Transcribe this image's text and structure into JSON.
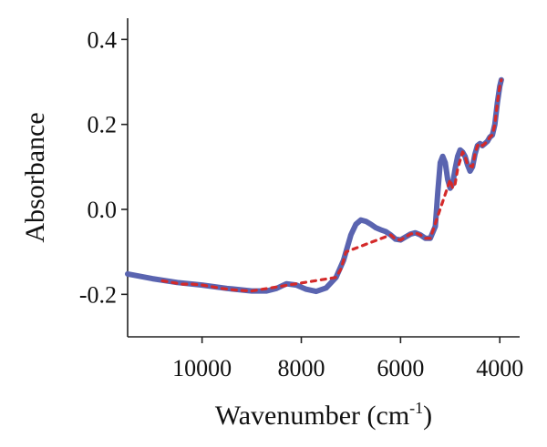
{
  "chart_data": {
    "type": "line",
    "title": "",
    "xlabel": "Wavenumber (cm",
    "xlabel_sup": "-1",
    "xlabel_tail": ")",
    "ylabel": "Absorbance",
    "x_reversed": true,
    "xlim": [
      11500,
      3600
    ],
    "ylim": [
      -0.3,
      0.45
    ],
    "x_ticks": [
      10000,
      8000,
      6000,
      4000
    ],
    "x_tick_labels": [
      "10000",
      "8000",
      "6000",
      "4000"
    ],
    "y_ticks": [
      0.4,
      0.2,
      0.0,
      -0.2
    ],
    "y_tick_labels": [
      "0.4",
      "0.2",
      "0.0",
      "-0.2"
    ],
    "grid": false,
    "colors": {
      "main": "#5a64b0",
      "overlay": "#d42a2a"
    },
    "series": [
      {
        "style": "solid",
        "x": [
          11500,
          11000,
          10500,
          10000,
          9500,
          9000,
          8700,
          8500,
          8300,
          8100,
          7900,
          7700,
          7500,
          7300,
          7150,
          7000,
          6900,
          6800,
          6700,
          6600,
          6500,
          6400,
          6300,
          6200,
          6100,
          6000,
          5900,
          5800,
          5700,
          5600,
          5500,
          5400,
          5300,
          5250,
          5200,
          5150,
          5100,
          5050,
          5000,
          4950,
          4900,
          4850,
          4800,
          4750,
          4700,
          4650,
          4600,
          4550,
          4500,
          4450,
          4400,
          4350,
          4300,
          4250,
          4200,
          4150,
          4100,
          4050,
          4000,
          3970
        ],
        "y": [
          -0.152,
          -0.163,
          -0.172,
          -0.178,
          -0.186,
          -0.192,
          -0.192,
          -0.186,
          -0.175,
          -0.178,
          -0.188,
          -0.193,
          -0.185,
          -0.16,
          -0.12,
          -0.06,
          -0.035,
          -0.025,
          -0.028,
          -0.035,
          -0.043,
          -0.048,
          -0.052,
          -0.06,
          -0.07,
          -0.072,
          -0.065,
          -0.058,
          -0.055,
          -0.06,
          -0.068,
          -0.068,
          -0.04,
          0.04,
          0.11,
          0.125,
          0.11,
          0.07,
          0.05,
          0.06,
          0.095,
          0.125,
          0.14,
          0.135,
          0.125,
          0.105,
          0.09,
          0.1,
          0.13,
          0.15,
          0.155,
          0.15,
          0.155,
          0.16,
          0.17,
          0.175,
          0.2,
          0.25,
          0.29,
          0.305
        ]
      },
      {
        "style": "dashed",
        "x": [
          10800,
          10600,
          10400,
          10200,
          10000,
          9800,
          9600,
          9400,
          9200,
          9000,
          7300,
          7200,
          7100,
          6200,
          6100,
          6000,
          5900,
          5800,
          5700,
          5600,
          5500,
          5400,
          5000,
          4950,
          4900,
          4850,
          4750,
          4700,
          4650,
          4550,
          4500,
          4450,
          4400,
          4350,
          4300,
          4250,
          4200,
          4150,
          4100,
          4050,
          4000,
          3970
        ],
        "y": [
          -0.168,
          -0.172,
          -0.176,
          -0.176,
          -0.178,
          -0.182,
          -0.186,
          -0.189,
          -0.191,
          -0.192,
          -0.16,
          -0.14,
          -0.1,
          -0.06,
          -0.07,
          -0.072,
          -0.065,
          -0.058,
          -0.055,
          -0.06,
          -0.068,
          -0.068,
          0.07,
          0.05,
          0.06,
          0.095,
          0.135,
          0.125,
          0.105,
          0.1,
          0.13,
          0.15,
          0.155,
          0.15,
          0.155,
          0.16,
          0.17,
          0.175,
          0.2,
          0.25,
          0.29,
          0.305
        ]
      }
    ]
  }
}
